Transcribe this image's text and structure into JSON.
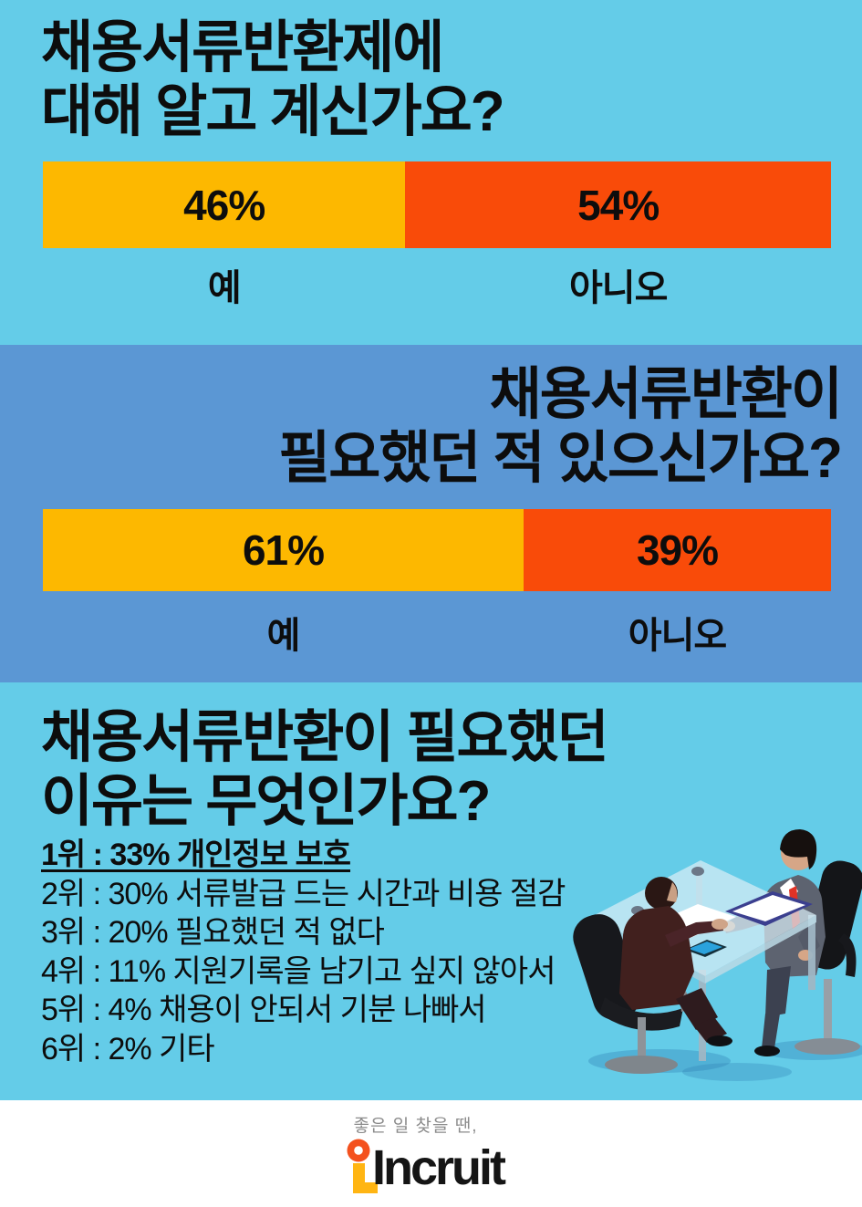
{
  "colors": {
    "bg_light": "#64cce8",
    "bg_dark": "#5b97d4",
    "bar_yes": "#fdb800",
    "bar_no": "#f94b09",
    "ink": "#0d0d0d",
    "footer_bg": "#ffffff",
    "slogan_gray": "#8b8b8b",
    "logo_orange": "#f4511e",
    "logo_yellow": "#ffb513",
    "logo_ink": "#151515"
  },
  "survey_know": {
    "title_line1": "채용서류반환제에",
    "title_line2": "대해 알고 계신가요?",
    "yes_pct": "46%",
    "no_pct": "54%",
    "yes_label": "예",
    "no_label": "아니오"
  },
  "survey_need": {
    "title_line1": "채용서류반환이",
    "title_line2": "필요했던 적 있으신가요?",
    "yes_pct": "61%",
    "no_pct": "39%",
    "yes_label": "예",
    "no_label": "아니오"
  },
  "survey_reason": {
    "title_line1": "채용서류반환이 필요했던",
    "title_line2": "이유는 무엇인가요?",
    "items": [
      {
        "rank": "1위",
        "pct": "33%",
        "label": "개인정보 보호",
        "top": true
      },
      {
        "rank": "2위",
        "pct": "30%",
        "label": "서류발급 드는 시간과 비용 절감",
        "top": false
      },
      {
        "rank": "3위",
        "pct": "20%",
        "label": "필요했던 적 없다",
        "top": false
      },
      {
        "rank": "4위",
        "pct": "11%",
        "label": "지원기록을 남기고 싶지 않아서",
        "top": false
      },
      {
        "rank": "5위",
        "pct": "4%",
        "label": "채용이 안되서 기분 나빠서",
        "top": false
      },
      {
        "rank": "6위",
        "pct": "2%",
        "label": "기타",
        "top": false
      }
    ]
  },
  "footer": {
    "slogan": "좋은 일 찾을 땐,",
    "brand": "Incruit"
  },
  "chart_data": [
    {
      "type": "bar",
      "subtype": "horizontal-stacked-100",
      "title": "채용서류반환제에 대해 알고 계신가요?",
      "categories": [
        "예",
        "아니오"
      ],
      "values": [
        46,
        54
      ],
      "unit": "%",
      "colors": [
        "#fdb800",
        "#f94b09"
      ],
      "legend_position": "below-bar"
    },
    {
      "type": "bar",
      "subtype": "horizontal-stacked-100",
      "title": "채용서류반환이 필요했던 적 있으신가요?",
      "categories": [
        "예",
        "아니오"
      ],
      "values": [
        61,
        39
      ],
      "unit": "%",
      "colors": [
        "#fdb800",
        "#f94b09"
      ],
      "legend_position": "below-bar"
    },
    {
      "type": "table",
      "title": "채용서류반환이 필요했던 이유는 무엇인가요?",
      "categories": [
        "개인정보 보호",
        "서류발급 드는 시간과 비용 절감",
        "필요했던 적 없다",
        "지원기록을 남기고 싶지 않아서",
        "채용이 안되서 기분 나빠서",
        "기타"
      ],
      "values": [
        33,
        30,
        20,
        11,
        4,
        2
      ],
      "unit": "%"
    }
  ]
}
